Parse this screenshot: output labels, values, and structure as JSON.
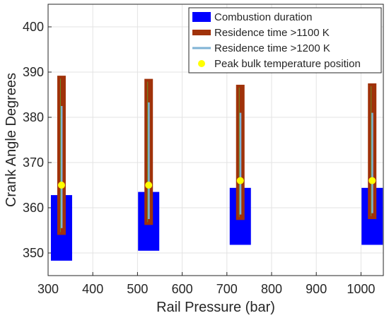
{
  "chart_data": {
    "type": "bar",
    "xlabel": "Rail Pressure (bar)",
    "ylabel": "Crank Angle Degrees",
    "xlim": [
      300,
      1050
    ],
    "ylim": [
      345,
      405
    ],
    "x_ticks": [
      "300",
      "400",
      "500",
      "600",
      "700",
      "800",
      "900",
      "1000"
    ],
    "y_ticks": [
      "350",
      "360",
      "370",
      "380",
      "390",
      "400"
    ],
    "grid": true,
    "legend_position": "top-right",
    "categories": [
      330,
      525,
      730,
      1025
    ],
    "series": [
      {
        "name": "Combustion duration",
        "color": "#0000ff",
        "ranges": [
          [
            348.3,
            362.8
          ],
          [
            350.5,
            363.5
          ],
          [
            351.8,
            364.4
          ],
          [
            351.8,
            364.4
          ]
        ]
      },
      {
        "name": "Residence time >1100 K",
        "color": "#a0320a",
        "ranges": [
          [
            354.0,
            389.2
          ],
          [
            356.2,
            388.5
          ],
          [
            357.3,
            387.2
          ],
          [
            357.5,
            387.5
          ]
        ]
      },
      {
        "name": "Residence time >1200 K",
        "color": "#7fb3d5",
        "ranges": [
          [
            355.5,
            382.5
          ],
          [
            357.5,
            383.3
          ],
          [
            358.5,
            381.0
          ],
          [
            358.8,
            381.0
          ]
        ]
      },
      {
        "name": "Peak bulk temperature position",
        "color": "#ffff00",
        "values": [
          365.0,
          365.0,
          366.0,
          366.0
        ]
      }
    ]
  }
}
